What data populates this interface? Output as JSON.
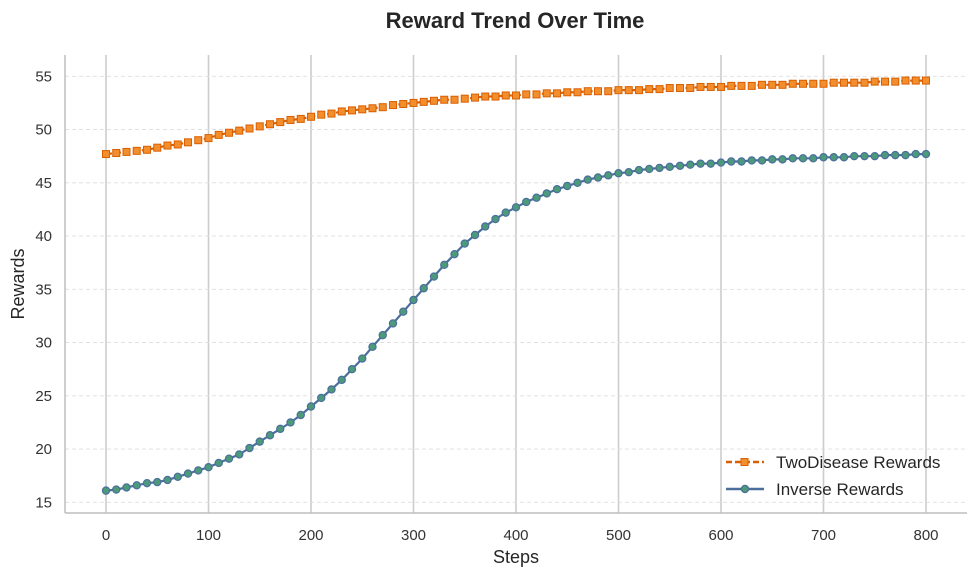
{
  "chart_data": {
    "type": "line",
    "title": "Reward Trend Over Time",
    "xlabel": "Steps",
    "ylabel": "Rewards",
    "xlim": [
      -40,
      840
    ],
    "ylim": [
      14,
      57
    ],
    "xticks": [
      0,
      100,
      200,
      300,
      400,
      500,
      600,
      700,
      800
    ],
    "yticks": [
      15,
      20,
      25,
      30,
      35,
      40,
      45,
      50,
      55
    ],
    "grid": {
      "x": true,
      "y": true
    },
    "legend_position": "bottom-right",
    "series": [
      {
        "name": "TwoDisease Rewards",
        "color": "#d95f02",
        "marker": "square",
        "linestyle": "dashed",
        "x": [
          0,
          10,
          20,
          30,
          40,
          50,
          60,
          70,
          80,
          90,
          100,
          110,
          120,
          130,
          140,
          150,
          160,
          170,
          180,
          190,
          200,
          210,
          220,
          230,
          240,
          250,
          260,
          270,
          280,
          290,
          300,
          310,
          320,
          330,
          340,
          350,
          360,
          370,
          380,
          390,
          400,
          410,
          420,
          430,
          440,
          450,
          460,
          470,
          480,
          490,
          500,
          510,
          520,
          530,
          540,
          550,
          560,
          570,
          580,
          590,
          600,
          610,
          620,
          630,
          640,
          650,
          660,
          670,
          680,
          690,
          700,
          710,
          720,
          730,
          740,
          750,
          760,
          770,
          780,
          790,
          800
        ],
        "y": [
          47.7,
          47.8,
          47.9,
          48.0,
          48.1,
          48.3,
          48.5,
          48.6,
          48.8,
          49.0,
          49.2,
          49.5,
          49.7,
          49.9,
          50.1,
          50.3,
          50.5,
          50.7,
          50.9,
          51.0,
          51.2,
          51.4,
          51.5,
          51.7,
          51.8,
          51.9,
          52.0,
          52.1,
          52.3,
          52.4,
          52.5,
          52.6,
          52.7,
          52.8,
          52.8,
          52.9,
          53.0,
          53.1,
          53.1,
          53.2,
          53.2,
          53.3,
          53.3,
          53.4,
          53.4,
          53.5,
          53.5,
          53.6,
          53.6,
          53.6,
          53.7,
          53.7,
          53.7,
          53.8,
          53.8,
          53.9,
          53.9,
          53.9,
          54.0,
          54.0,
          54.0,
          54.1,
          54.1,
          54.1,
          54.2,
          54.2,
          54.2,
          54.3,
          54.3,
          54.3,
          54.3,
          54.4,
          54.4,
          54.4,
          54.4,
          54.5,
          54.5,
          54.5,
          54.6,
          54.6,
          54.6
        ]
      },
      {
        "name": "Inverse Rewards",
        "color": "#4a6f9c",
        "marker_face": "#4c9a7a",
        "marker": "circle",
        "linestyle": "solid",
        "x": [
          0,
          10,
          20,
          30,
          40,
          50,
          60,
          70,
          80,
          90,
          100,
          110,
          120,
          130,
          140,
          150,
          160,
          170,
          180,
          190,
          200,
          210,
          220,
          230,
          240,
          250,
          260,
          270,
          280,
          290,
          300,
          310,
          320,
          330,
          340,
          350,
          360,
          370,
          380,
          390,
          400,
          410,
          420,
          430,
          440,
          450,
          460,
          470,
          480,
          490,
          500,
          510,
          520,
          530,
          540,
          550,
          560,
          570,
          580,
          590,
          600,
          610,
          620,
          630,
          640,
          650,
          660,
          670,
          680,
          690,
          700,
          710,
          720,
          730,
          740,
          750,
          760,
          770,
          780,
          790,
          800
        ],
        "y": [
          16.1,
          16.2,
          16.4,
          16.6,
          16.8,
          16.9,
          17.1,
          17.4,
          17.7,
          18.0,
          18.3,
          18.7,
          19.1,
          19.5,
          20.1,
          20.7,
          21.3,
          21.9,
          22.5,
          23.2,
          24.0,
          24.8,
          25.6,
          26.5,
          27.5,
          28.5,
          29.6,
          30.7,
          31.8,
          32.9,
          34.0,
          35.1,
          36.2,
          37.3,
          38.3,
          39.3,
          40.1,
          40.9,
          41.6,
          42.2,
          42.7,
          43.2,
          43.6,
          44.0,
          44.4,
          44.7,
          45.0,
          45.3,
          45.5,
          45.7,
          45.9,
          46.0,
          46.2,
          46.3,
          46.4,
          46.5,
          46.6,
          46.7,
          46.8,
          46.8,
          46.9,
          47.0,
          47.0,
          47.1,
          47.1,
          47.2,
          47.2,
          47.3,
          47.3,
          47.3,
          47.4,
          47.4,
          47.4,
          47.5,
          47.5,
          47.5,
          47.6,
          47.6,
          47.6,
          47.7,
          47.7
        ]
      }
    ]
  }
}
